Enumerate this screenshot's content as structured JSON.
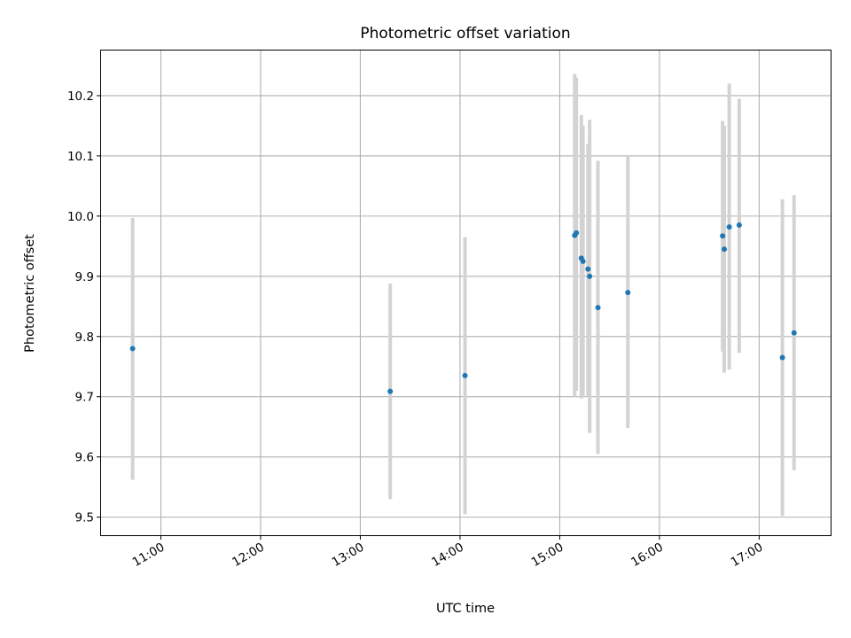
{
  "chart_data": {
    "type": "scatter",
    "title": "Photometric offset variation",
    "xlabel": "UTC time",
    "ylabel": "Photometric offset",
    "x_tick_labels": [
      "11:00",
      "12:00",
      "13:00",
      "14:00",
      "15:00",
      "16:00",
      "17:00"
    ],
    "y_tick_labels": [
      "9.5",
      "9.6",
      "9.7",
      "9.8",
      "9.9",
      "10.0",
      "10.1",
      "10.2"
    ],
    "y_ticks": [
      9.5,
      9.6,
      9.7,
      9.8,
      9.9,
      10.0,
      10.1,
      10.2
    ],
    "xlim": [
      "10:24",
      "17:43"
    ],
    "ylim": [
      9.47,
      10.275
    ],
    "grid": true,
    "colors": {
      "point": "#1f77b4",
      "errorbar": "#d3d3d3",
      "grid": "#b0b0b0"
    },
    "points": [
      {
        "x": "10:43",
        "y": 9.78,
        "ylow": 9.562,
        "yhigh": 9.997
      },
      {
        "x": "13:18",
        "y": 9.709,
        "ylow": 9.53,
        "yhigh": 9.888
      },
      {
        "x": "14:03",
        "y": 9.735,
        "ylow": 9.505,
        "yhigh": 9.965
      },
      {
        "x": "15:09",
        "y": 9.968,
        "ylow": 9.7,
        "yhigh": 10.236
      },
      {
        "x": "15:10",
        "y": 9.972,
        "ylow": 9.71,
        "yhigh": 10.23
      },
      {
        "x": "15:13",
        "y": 9.93,
        "ylow": 9.697,
        "yhigh": 10.168
      },
      {
        "x": "15:14",
        "y": 9.925,
        "ylow": 9.7,
        "yhigh": 10.15
      },
      {
        "x": "15:17",
        "y": 9.912,
        "ylow": 9.7,
        "yhigh": 10.12
      },
      {
        "x": "15:18",
        "y": 9.9,
        "ylow": 9.64,
        "yhigh": 10.16
      },
      {
        "x": "15:23",
        "y": 9.848,
        "ylow": 9.605,
        "yhigh": 10.092
      },
      {
        "x": "15:41",
        "y": 9.873,
        "ylow": 9.648,
        "yhigh": 10.1
      },
      {
        "x": "16:38",
        "y": 9.967,
        "ylow": 9.775,
        "yhigh": 10.158
      },
      {
        "x": "16:39",
        "y": 9.945,
        "ylow": 9.74,
        "yhigh": 10.15
      },
      {
        "x": "16:42",
        "y": 9.982,
        "ylow": 9.745,
        "yhigh": 10.22
      },
      {
        "x": "16:48",
        "y": 9.985,
        "ylow": 9.773,
        "yhigh": 10.195
      },
      {
        "x": "17:14",
        "y": 9.765,
        "ylow": 9.502,
        "yhigh": 10.028
      },
      {
        "x": "17:21",
        "y": 9.806,
        "ylow": 9.578,
        "yhigh": 10.035
      }
    ]
  }
}
